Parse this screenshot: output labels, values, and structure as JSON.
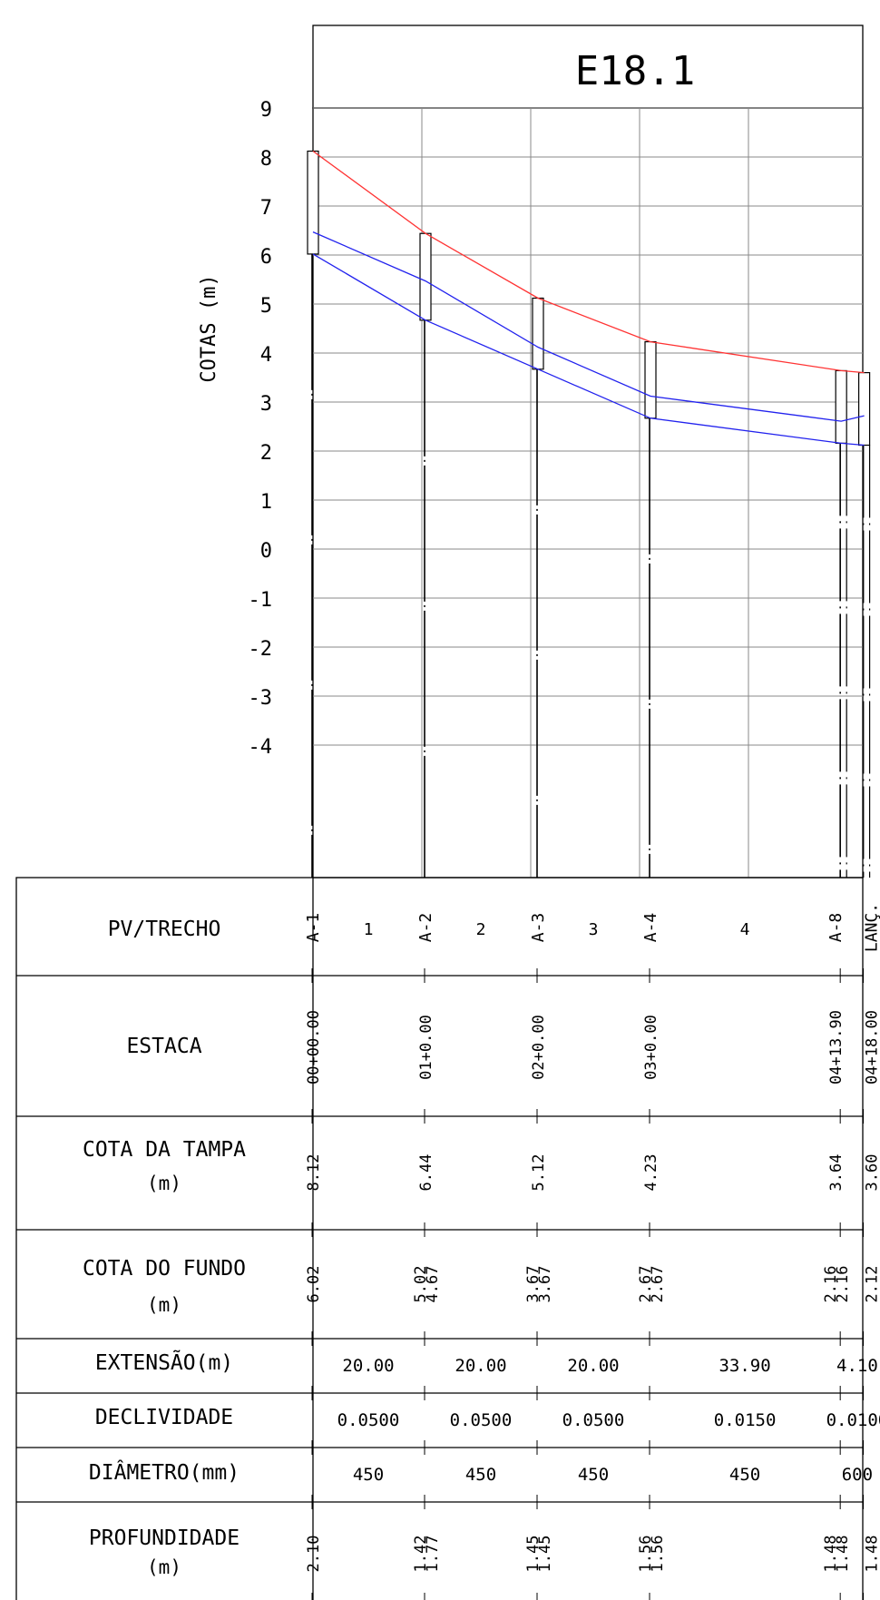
{
  "chart_data": {
    "type": "line",
    "title": "E18.1",
    "ylabel": "COTAS (m)",
    "ylim": [
      -4,
      9
    ],
    "y_ticks": [
      "9",
      "8",
      "7",
      "6",
      "5",
      "4",
      "3",
      "2",
      "1",
      "0",
      "-1",
      "-2",
      "-3",
      "-4"
    ],
    "grid": true,
    "series": [
      {
        "points": [
          [
            0,
            8.12
          ],
          [
            20,
            6.44
          ],
          [
            40,
            5.12
          ],
          [
            60,
            4.23
          ],
          [
            93.9,
            3.64
          ],
          [
            98,
            3.6
          ]
        ],
        "color": "#ff3333"
      },
      {
        "points": [
          [
            0,
            6.47
          ],
          [
            20,
            5.47
          ],
          [
            40,
            4.12
          ],
          [
            60,
            3.12
          ],
          [
            93.9,
            2.61
          ],
          [
            98,
            2.72
          ]
        ],
        "color": "#2222ee"
      },
      {
        "points": [
          [
            0,
            6.02
          ],
          [
            20,
            4.67
          ],
          [
            40,
            3.67
          ],
          [
            60,
            2.67
          ],
          [
            93.9,
            2.16
          ],
          [
            98,
            2.12
          ]
        ],
        "color": "#2222ee"
      }
    ],
    "manholes": [
      {
        "x": 0,
        "top": 8.12,
        "bottom": 6.02
      },
      {
        "x": 20,
        "top": 6.44,
        "bottom": 4.67
      },
      {
        "x": 40,
        "top": 5.12,
        "bottom": 3.67
      },
      {
        "x": 60,
        "top": 4.23,
        "bottom": 2.67
      },
      {
        "x": 93.9,
        "top": 3.64,
        "bottom": 2.16
      },
      {
        "x": 98,
        "top": 3.6,
        "bottom": 2.12
      }
    ]
  },
  "table": {
    "headers": {
      "pv": "PV/TRECHO",
      "estaca": "ESTACA",
      "tampa_1": "COTA DA TAMPA",
      "tampa_2": "(m)",
      "fundo_1": "COTA DO FUNDO",
      "fundo_2": "(m)",
      "extensao": "EXTENSÃO(m)",
      "declividade": "DECLIVIDADE",
      "diametro": "DIÂMETRO(mm)",
      "profundidade_1": "PROFUNDIDADE",
      "profundidade_2": "(m)"
    },
    "stations": [
      {
        "pv": "A-1",
        "estaca": "00+00.00",
        "tampa": "8.12",
        "fundo": [
          "6.02"
        ],
        "profundidade": [
          "2.10"
        ]
      },
      {
        "pv": "A-2",
        "estaca": "01+0.00",
        "tampa": "6.44",
        "fundo": [
          "5.02",
          "4.67"
        ],
        "profundidade": [
          "1.42",
          "1.77"
        ]
      },
      {
        "pv": "A-3",
        "estaca": "02+0.00",
        "tampa": "5.12",
        "fundo": [
          "3.67",
          "3.67"
        ],
        "profundidade": [
          "1.45",
          "1.45"
        ]
      },
      {
        "pv": "A-4",
        "estaca": "03+0.00",
        "tampa": "4.23",
        "fundo": [
          "2.67",
          "2.67"
        ],
        "profundidade": [
          "1.56",
          "1.56"
        ]
      },
      {
        "pv": "A-8",
        "estaca": "04+13.90",
        "tampa": "3.64",
        "fundo": [
          "2.16",
          "2.16"
        ],
        "profundidade": [
          "1.48",
          "1.48"
        ]
      },
      {
        "pv": "LANÇ.",
        "estaca": "04+18.00",
        "tampa": "3.60",
        "fundo": [
          "2.12"
        ],
        "profundidade": [
          "1.48"
        ]
      }
    ],
    "segments": [
      {
        "id": "1",
        "extensao": "20.00",
        "declividade": "0.0500",
        "diametro": "450"
      },
      {
        "id": "2",
        "extensao": "20.00",
        "declividade": "0.0500",
        "diametro": "450"
      },
      {
        "id": "3",
        "extensao": "20.00",
        "declividade": "0.0500",
        "diametro": "450"
      },
      {
        "id": "4",
        "extensao": "33.90",
        "declividade": "0.0150",
        "diametro": "450"
      },
      {
        "id": "",
        "extensao": "4.10",
        "declividade": "0.0100",
        "diametro": "600"
      }
    ]
  }
}
